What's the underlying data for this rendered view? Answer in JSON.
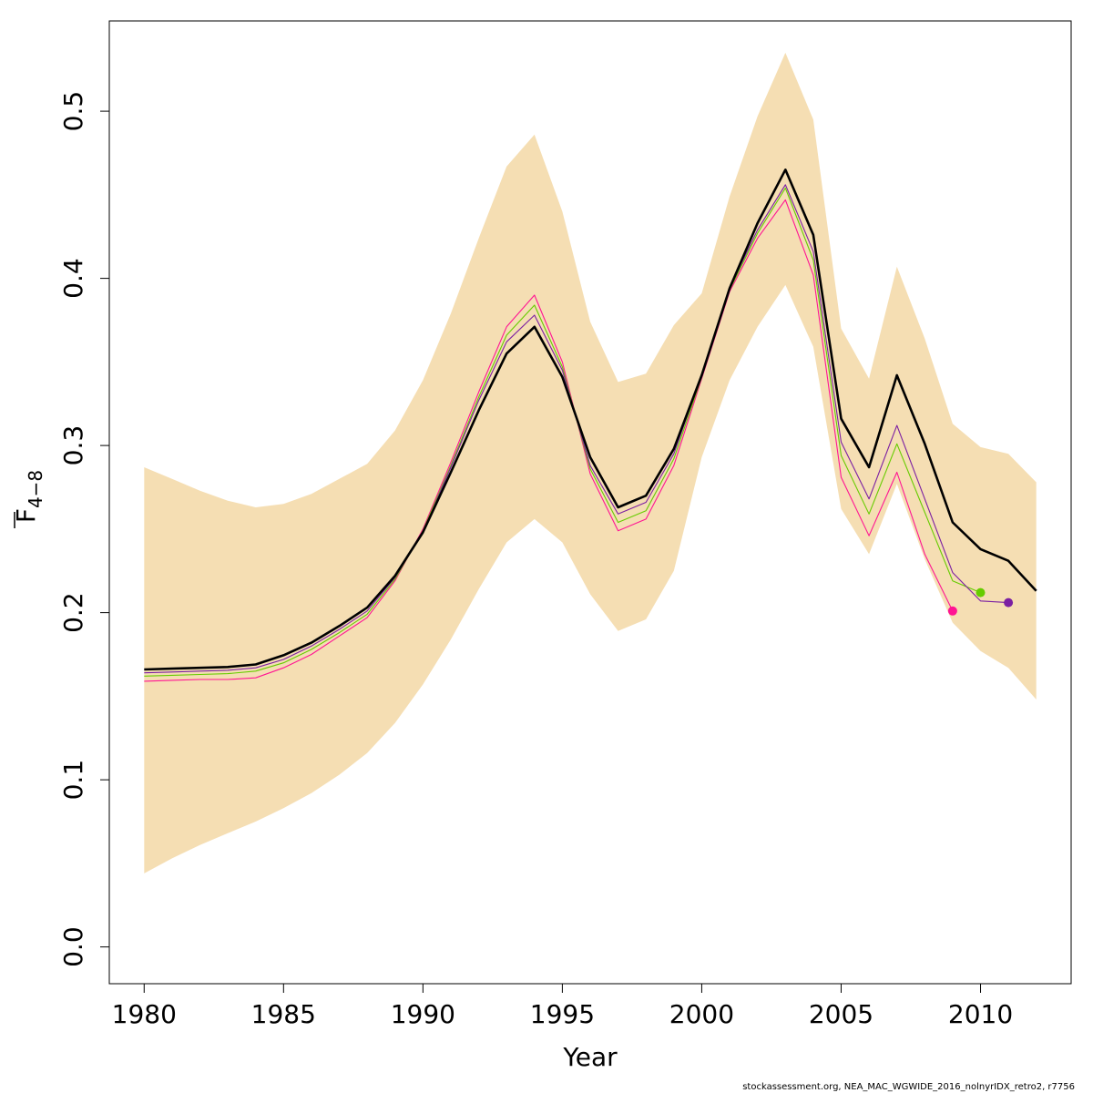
{
  "chart_data": {
    "type": "line",
    "xlabel": "Year",
    "ylabel": "F",
    "ylabel_subscript": "4−8",
    "footer": "stockassessment.org, NEA_MAC_WGWIDE_2016_nolnyrIDX_retro2, r7756",
    "xlim": [
      1978.75,
      2013.25
    ],
    "ylim": [
      -0.022,
      0.554
    ],
    "x_ticks": [
      1980,
      1985,
      1990,
      1995,
      2000,
      2005,
      2010
    ],
    "y_ticks": [
      0.0,
      0.1,
      0.2,
      0.3,
      0.4,
      0.5
    ],
    "y_tick_labels": [
      "0.0",
      "0.1",
      "0.2",
      "0.3",
      "0.4",
      "0.5"
    ],
    "grid": false,
    "colors": {
      "band": "#f5deb3",
      "main": "#000000",
      "retro1": "#7b1fa2",
      "retro2": "#66cc00",
      "retro3": "#ff1493"
    },
    "band": {
      "x": [
        1980,
        1981,
        1982,
        1983,
        1984,
        1985,
        1986,
        1987,
        1988,
        1989,
        1990,
        1991,
        1992,
        1993,
        1994,
        1995,
        1996,
        1997,
        1998,
        1999,
        2000,
        2001,
        2002,
        2003,
        2004,
        2005,
        2006,
        2007,
        2008,
        2009,
        2010,
        2011,
        2012
      ],
      "upper": [
        0.287,
        0.28,
        0.273,
        0.267,
        0.263,
        0.265,
        0.271,
        0.28,
        0.289,
        0.309,
        0.339,
        0.379,
        0.424,
        0.467,
        0.486,
        0.44,
        0.374,
        0.338,
        0.343,
        0.372,
        0.391,
        0.449,
        0.497,
        0.535,
        0.495,
        0.37,
        0.34,
        0.407,
        0.364,
        0.313,
        0.299,
        0.295,
        0.278
      ],
      "lower": [
        0.044,
        0.053,
        0.061,
        0.068,
        0.075,
        0.083,
        0.092,
        0.103,
        0.116,
        0.134,
        0.157,
        0.184,
        0.214,
        0.242,
        0.256,
        0.242,
        0.211,
        0.189,
        0.196,
        0.225,
        0.293,
        0.339,
        0.371,
        0.396,
        0.359,
        0.262,
        0.235,
        0.277,
        0.232,
        0.194,
        0.177,
        0.167,
        0.148
      ]
    },
    "series": [
      {
        "key": "main",
        "x": [
          1980,
          1981,
          1982,
          1983,
          1984,
          1985,
          1986,
          1987,
          1988,
          1989,
          1990,
          1991,
          1992,
          1993,
          1994,
          1995,
          1996,
          1997,
          1998,
          1999,
          2000,
          2001,
          2002,
          2003,
          2004,
          2005,
          2006,
          2007,
          2008,
          2009,
          2010,
          2011,
          2012
        ],
        "values": [
          0.166,
          0.1665,
          0.167,
          0.1675,
          0.169,
          0.1745,
          0.182,
          0.192,
          0.203,
          0.222,
          0.248,
          0.284,
          0.321,
          0.355,
          0.371,
          0.341,
          0.293,
          0.263,
          0.27,
          0.298,
          0.342,
          0.394,
          0.433,
          0.465,
          0.426,
          0.316,
          0.287,
          0.342,
          0.301,
          0.254,
          0.238,
          0.231,
          0.213
        ]
      },
      {
        "key": "retro1",
        "x": [
          1980,
          1981,
          1982,
          1983,
          1984,
          1985,
          1986,
          1987,
          1988,
          1989,
          1990,
          1991,
          1992,
          1993,
          1994,
          1995,
          1996,
          1997,
          1998,
          1999,
          2000,
          2001,
          2002,
          2003,
          2004,
          2005,
          2006,
          2007,
          2008,
          2009,
          2010,
          2011
        ],
        "values": [
          0.164,
          0.1645,
          0.165,
          0.1655,
          0.167,
          0.172,
          0.18,
          0.19,
          0.201,
          0.221,
          0.248,
          0.287,
          0.327,
          0.362,
          0.378,
          0.345,
          0.288,
          0.259,
          0.266,
          0.295,
          0.342,
          0.394,
          0.429,
          0.456,
          0.416,
          0.302,
          0.268,
          0.312,
          0.268,
          0.224,
          0.207,
          0.206
        ]
      },
      {
        "key": "retro2",
        "x": [
          1980,
          1981,
          1982,
          1983,
          1984,
          1985,
          1986,
          1987,
          1988,
          1989,
          1990,
          1991,
          1992,
          1993,
          1994,
          1995,
          1996,
          1997,
          1998,
          1999,
          2000,
          2001,
          2002,
          2003,
          2004,
          2005,
          2006,
          2007,
          2008,
          2009,
          2010
        ],
        "values": [
          0.162,
          0.1625,
          0.163,
          0.1635,
          0.165,
          0.17,
          0.178,
          0.188,
          0.199,
          0.22,
          0.249,
          0.288,
          0.329,
          0.366,
          0.384,
          0.347,
          0.286,
          0.254,
          0.261,
          0.292,
          0.341,
          0.393,
          0.427,
          0.454,
          0.411,
          0.294,
          0.259,
          0.301,
          0.26,
          0.219,
          0.212
        ]
      },
      {
        "key": "retro3",
        "x": [
          1980,
          1981,
          1982,
          1983,
          1984,
          1985,
          1986,
          1987,
          1988,
          1989,
          1990,
          1991,
          1992,
          1993,
          1994,
          1995,
          1996,
          1997,
          1998,
          1999,
          2000,
          2001,
          2002,
          2003,
          2004,
          2005,
          2006,
          2007,
          2008,
          2009
        ],
        "values": [
          0.159,
          0.1595,
          0.16,
          0.16,
          0.161,
          0.167,
          0.175,
          0.186,
          0.197,
          0.219,
          0.25,
          0.29,
          0.332,
          0.371,
          0.39,
          0.35,
          0.283,
          0.249,
          0.256,
          0.288,
          0.34,
          0.392,
          0.424,
          0.447,
          0.402,
          0.281,
          0.246,
          0.284,
          0.235,
          0.201
        ]
      }
    ],
    "endpoints": [
      {
        "key": "retro1",
        "x": 2011,
        "y": 0.206
      },
      {
        "key": "retro2",
        "x": 2010,
        "y": 0.212
      },
      {
        "key": "retro3",
        "x": 2009,
        "y": 0.201
      }
    ]
  }
}
